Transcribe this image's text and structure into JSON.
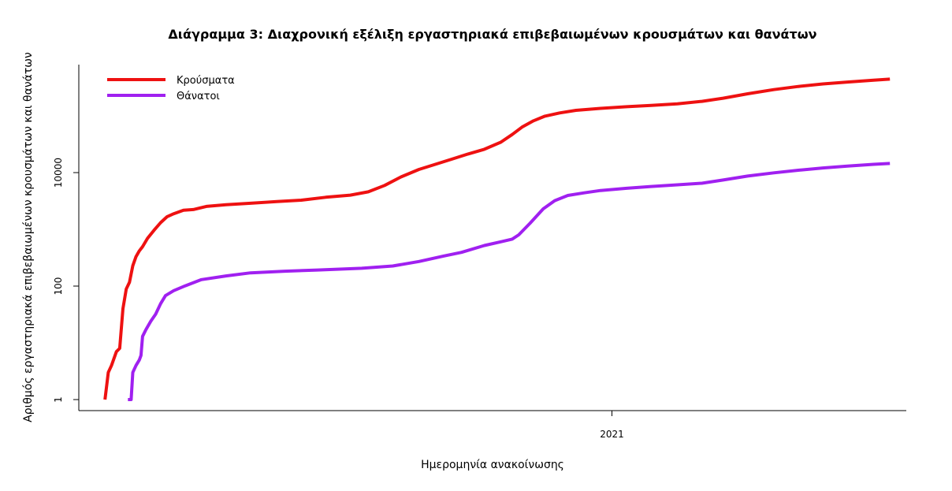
{
  "chart_data": {
    "type": "line",
    "title": "Διάγραμμα 3: Διαχρονική εξέλιξη εργαστηριακά επιβεβαιωμένων κρουσμάτων και θανάτων",
    "xlabel": "Ημερομηνία ανακοίνωσης",
    "ylabel": "Αριθμός εργαστηριακά επιβεβαιωμένων κρουσμάτων και θανάτων",
    "y_scale": "log",
    "ylim": [
      1,
      800000
    ],
    "xlim": [
      "2020-02-10",
      "2021-06-30"
    ],
    "x_ticks": [
      {
        "date": "2021-01-01",
        "label": "2021"
      }
    ],
    "y_ticks": [
      {
        "value": 1,
        "label": "1"
      },
      {
        "value": 100,
        "label": "100"
      },
      {
        "value": 10000,
        "label": "10000"
      }
    ],
    "grid": false,
    "legend": "top-left",
    "series": [
      {
        "name": "Κρούσματα",
        "color": "#ee1111",
        "points": [
          [
            "2020-02-26",
            1
          ],
          [
            "2020-02-28",
            3
          ],
          [
            "2020-03-01",
            4
          ],
          [
            "2020-03-04",
            7
          ],
          [
            "2020-03-06",
            8
          ],
          [
            "2020-03-08",
            40
          ],
          [
            "2020-03-10",
            89
          ],
          [
            "2020-03-12",
            117
          ],
          [
            "2020-03-14",
            228
          ],
          [
            "2020-03-16",
            331
          ],
          [
            "2020-03-18",
            418
          ],
          [
            "2020-03-20",
            495
          ],
          [
            "2020-03-23",
            695
          ],
          [
            "2020-03-27",
            966
          ],
          [
            "2020-03-31",
            1314
          ],
          [
            "2020-04-04",
            1673
          ],
          [
            "2020-04-08",
            1884
          ],
          [
            "2020-04-14",
            2170
          ],
          [
            "2020-04-20",
            2235
          ],
          [
            "2020-04-28",
            2534
          ],
          [
            "2020-05-10",
            2710
          ],
          [
            "2020-05-25",
            2882
          ],
          [
            "2020-06-10",
            3088
          ],
          [
            "2020-06-25",
            3266
          ],
          [
            "2020-07-10",
            3672
          ],
          [
            "2020-07-25",
            4012
          ],
          [
            "2020-08-05",
            4587
          ],
          [
            "2020-08-15",
            5942
          ],
          [
            "2020-08-25",
            8381
          ],
          [
            "2020-09-05",
            11386
          ],
          [
            "2020-09-15",
            13981
          ],
          [
            "2020-09-25",
            17228
          ],
          [
            "2020-10-05",
            21299
          ],
          [
            "2020-10-15",
            25802
          ],
          [
            "2020-10-25",
            34299
          ],
          [
            "2020-11-01",
            46892
          ],
          [
            "2020-11-07",
            63321
          ],
          [
            "2020-11-14",
            81897
          ],
          [
            "2020-11-21",
            98745
          ],
          [
            "2020-11-30",
            112690
          ],
          [
            "2020-12-10",
            125010
          ],
          [
            "2020-12-25",
            135456
          ],
          [
            "2021-01-10",
            145000
          ],
          [
            "2021-01-25",
            153000
          ],
          [
            "2021-02-10",
            163000
          ],
          [
            "2021-02-25",
            180000
          ],
          [
            "2021-03-10",
            205000
          ],
          [
            "2021-03-25",
            245000
          ],
          [
            "2021-04-10",
            290000
          ],
          [
            "2021-04-25",
            330000
          ],
          [
            "2021-05-10",
            365000
          ],
          [
            "2021-05-25",
            395000
          ],
          [
            "2021-06-10",
            425000
          ],
          [
            "2021-06-20",
            444000
          ]
        ]
      },
      {
        "name": "Θάνατοι",
        "color": "#a020f0",
        "points": [
          [
            "2020-03-11",
            1
          ],
          [
            "2020-03-13",
            1
          ],
          [
            "2020-03-14",
            3
          ],
          [
            "2020-03-16",
            4
          ],
          [
            "2020-03-18",
            5
          ],
          [
            "2020-03-19",
            6
          ],
          [
            "2020-03-20",
            13
          ],
          [
            "2020-03-22",
            17
          ],
          [
            "2020-03-25",
            24
          ],
          [
            "2020-03-28",
            32
          ],
          [
            "2020-03-31",
            49
          ],
          [
            "2020-04-03",
            68
          ],
          [
            "2020-04-08",
            83
          ],
          [
            "2020-04-15",
            101
          ],
          [
            "2020-04-25",
            130
          ],
          [
            "2020-05-10",
            151
          ],
          [
            "2020-05-25",
            171
          ],
          [
            "2020-06-15",
            183
          ],
          [
            "2020-07-05",
            192
          ],
          [
            "2020-08-01",
            206
          ],
          [
            "2020-08-20",
            226
          ],
          [
            "2020-09-05",
            271
          ],
          [
            "2020-09-20",
            338
          ],
          [
            "2020-10-01",
            393
          ],
          [
            "2020-10-15",
            520
          ],
          [
            "2020-10-25",
            603
          ],
          [
            "2020-11-01",
            673
          ],
          [
            "2020-11-05",
            800
          ],
          [
            "2020-11-12",
            1288
          ],
          [
            "2020-11-20",
            2296
          ],
          [
            "2020-11-27",
            3204
          ],
          [
            "2020-12-05",
            3959
          ],
          [
            "2020-12-15",
            4402
          ],
          [
            "2020-12-25",
            4838
          ],
          [
            "2021-01-10",
            5300
          ],
          [
            "2021-01-25",
            5700
          ],
          [
            "2021-02-10",
            6100
          ],
          [
            "2021-02-25",
            6500
          ],
          [
            "2021-03-10",
            7400
          ],
          [
            "2021-03-25",
            8700
          ],
          [
            "2021-04-10",
            9900
          ],
          [
            "2021-04-25",
            11000
          ],
          [
            "2021-05-10",
            12100
          ],
          [
            "2021-05-25",
            13000
          ],
          [
            "2021-06-10",
            14000
          ],
          [
            "2021-06-20",
            14500
          ]
        ]
      }
    ]
  }
}
